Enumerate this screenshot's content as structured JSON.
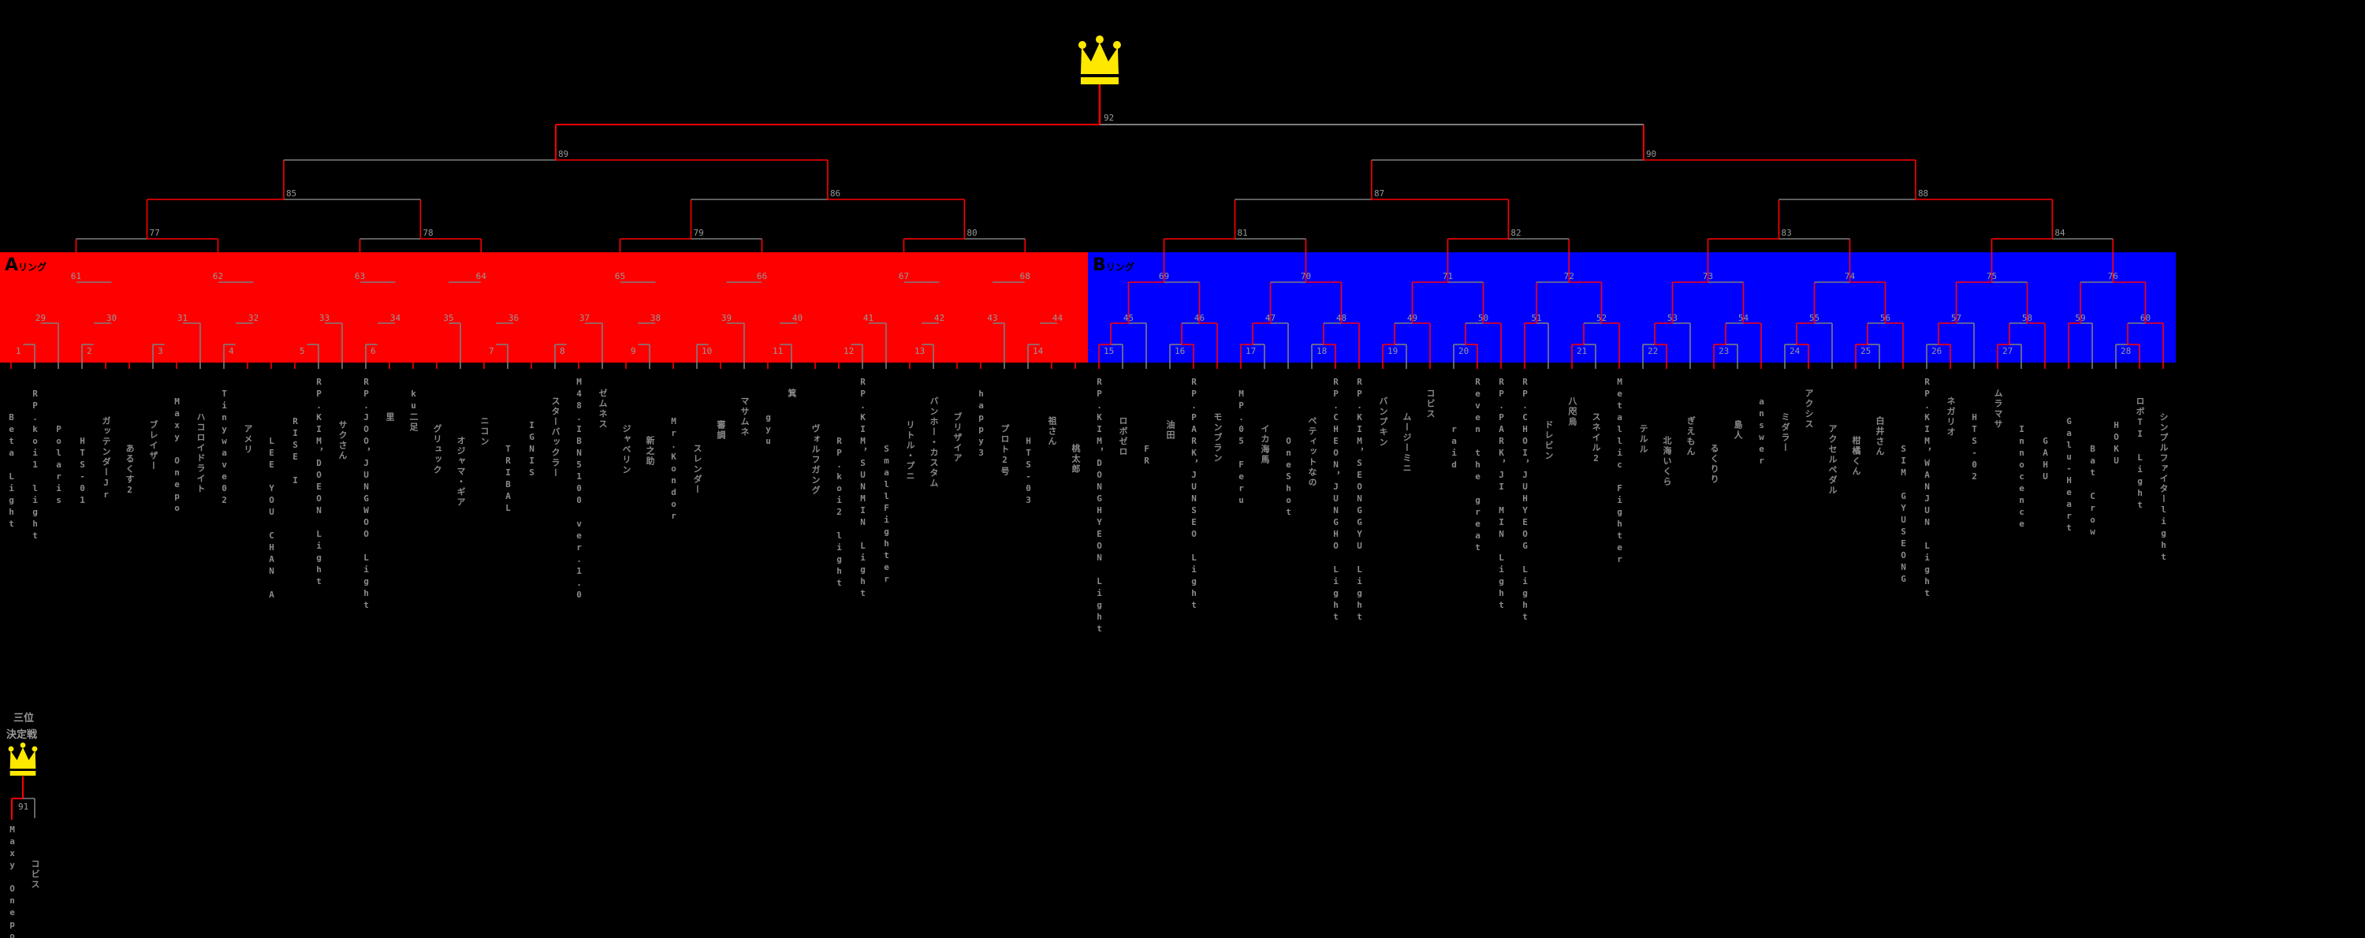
{
  "colors": {
    "background": "#000000",
    "ring_a_fill": "#ff0000",
    "ring_b_fill": "#0000ff",
    "line_gray": "#7d7d7d",
    "line_red": "#ff0000",
    "number_gray": "#989898",
    "name_gray": "#8a8a8a",
    "crown_yellow": "#ffe800",
    "ring_label_color": "#000000"
  },
  "ring_a": {
    "label_big": "A",
    "label_small": "リング"
  },
  "ring_b": {
    "label_big": "B",
    "label_small": "リング"
  },
  "third_place": {
    "title_line1": "三位",
    "title_line2": "決定戦",
    "match_no": "91",
    "left_player": "Maxy Onepo",
    "right_player": "コビス",
    "winner": "L"
  },
  "final_match_no": "92",
  "players_a": [
    "Beta Light",
    "RP.koi1 light",
    "Polaris",
    "HTS-01",
    "ガッテンダーJr",
    "あるくす2",
    "ブレイザー",
    "Maxy Onepo",
    "ハコロイドライト",
    "Tinywave02",
    "アメリ",
    "LEE YOU CHAN A",
    "RISE I",
    "RP.KIM，DOEON Light",
    "サクさん",
    "RP.JOO，JUNGWOO Light",
    "里",
    "ku二足",
    "グリュック",
    "オジャマ・ギア",
    "ニコン",
    "TRIBAL",
    "IGNIS",
    "スターバックラー",
    "M48.IBN5100 ver.1.0",
    "ゼムネス",
    "ジャベリン",
    "新之助",
    "Mr.Kondor",
    "スレンダー",
    "審調",
    "マサムネ",
    "gyu",
    "箕",
    "ヴォルフガング",
    "RP.koi2 light",
    "RP.KIM，SUNMIN Light",
    "SmallFighter",
    "リトル・プニ",
    "バンホー・カスタム",
    "ブリザイア",
    "happy3",
    "プロト2号",
    "HTS-03",
    "祖さん",
    "桃太郎"
  ],
  "players_b": [
    "RP.KIM，DONGHYEON Light",
    "ロボゼロ",
    "FR",
    "油田",
    "RP.PARK，JUNSEO Light",
    "モンブラン",
    "MP.05 Feru",
    "イカ海馬",
    "OneShot",
    "ペティットなの",
    "RP.CHEON，JUNGHO Light",
    "RP.KIM，SEONGGYU Light",
    "バンプキン",
    "ムージーミニ",
    "コビス",
    "raid",
    "Reven the great",
    "RP.PARK，JI MIN Light",
    "RP.CHOI，JUHYEOG Light",
    "ドレビン",
    "八咫烏",
    "スネイル2",
    "Metallic Fighter",
    "テルル",
    "北海いくら",
    "ぎえもん",
    "るくりり",
    "島人",
    "answer",
    "ミダラー",
    "アクシス",
    "アクセルペダル",
    "柑橘くん",
    "白井さん",
    "SIM GYUSEONG",
    "RP.KIM，WANJUN Light",
    "ネガリオ",
    "HTS-02",
    "ムラマサ",
    "Innocence",
    "GAHU",
    "Galu-Heart",
    "Bat Crow",
    "HOKU",
    "ロボTI Light",
    "シンプルファイターlight"
  ],
  "bracket": {
    "bye_slots": [
      1,
      3,
      5,
      7,
      9,
      11,
      12,
      13,
      15,
      17,
      19,
      21,
      23,
      25,
      27,
      28,
      29,
      31
    ],
    "r1_a": [
      "1",
      "2",
      "3",
      "4",
      "5",
      "6",
      "7",
      "8",
      "9",
      "10",
      "11",
      "12",
      "13",
      "14"
    ],
    "r1_b": [
      "15",
      "16",
      "17",
      "18",
      "19",
      "20",
      "21",
      "22",
      "23",
      "24",
      "25",
      "26",
      "27",
      "28"
    ],
    "r2_a": [
      "29",
      "30",
      "31",
      "32",
      "33",
      "34",
      "35",
      "36",
      "37",
      "38",
      "39",
      "40",
      "41",
      "42",
      "43",
      "44"
    ],
    "r2_b": [
      "45",
      "46",
      "47",
      "48",
      "49",
      "50",
      "51",
      "52",
      "53",
      "54",
      "55",
      "56",
      "57",
      "58",
      "59",
      "60"
    ],
    "r3_a": [
      "61",
      "62",
      "63",
      "64",
      "65",
      "66",
      "67",
      "68"
    ],
    "r3_b": [
      "69",
      "70",
      "71",
      "72",
      "73",
      "74",
      "75",
      "76"
    ],
    "r4_a": [
      "77",
      "78",
      "79",
      "80"
    ],
    "r4_b": [
      "81",
      "82",
      "83",
      "84"
    ],
    "r5_a": [
      "85",
      "86"
    ],
    "r5_b": [
      "87",
      "88"
    ],
    "r6_a": "89",
    "r6_b": "90",
    "winners": {
      "92": "L",
      "89": "R",
      "90": "R",
      "86": "R",
      "88": "R",
      "84": "L",
      "80": "L",
      "67": "L",
      "41": "L",
      "12": "L",
      "3": "R",
      "31": "L",
      "62": "L",
      "77": "R",
      "85": "L",
      "49": "R",
      "71": "L",
      "82": "L",
      "87": "R",
      "91": "L"
    }
  }
}
